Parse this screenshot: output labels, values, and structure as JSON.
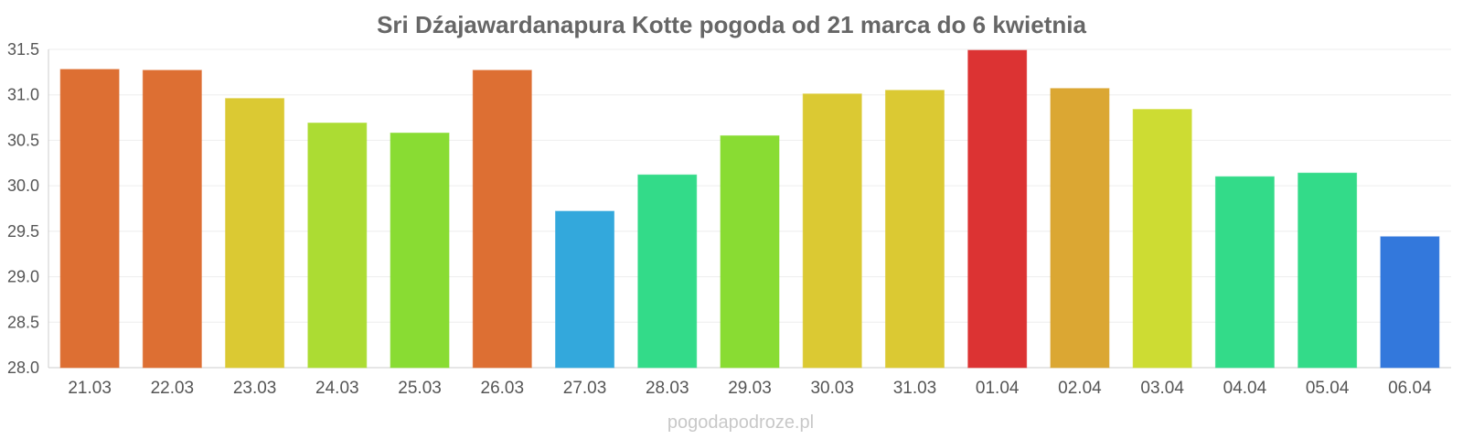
{
  "chart_data": {
    "type": "bar",
    "title": "Sri Dźajawardanapura Kotte pogoda od 21 marca do 6 kwietnia",
    "xlabel": "",
    "ylabel": "",
    "categories": [
      "21.03",
      "22.03",
      "23.03",
      "24.03",
      "25.03",
      "26.03",
      "27.03",
      "28.03",
      "29.03",
      "30.03",
      "31.03",
      "01.04",
      "02.04",
      "03.04",
      "04.04",
      "05.04",
      "06.04"
    ],
    "values": [
      31.28,
      31.27,
      30.96,
      30.69,
      30.58,
      31.27,
      29.72,
      30.12,
      30.55,
      31.01,
      31.05,
      31.49,
      31.07,
      30.84,
      30.1,
      30.14,
      29.44
    ],
    "colors": [
      "#dd6f33",
      "#dd6f33",
      "#dbc933",
      "#acdc33",
      "#89dc33",
      "#dd6f33",
      "#33a8dc",
      "#33db89",
      "#89dc33",
      "#dbc933",
      "#dbc933",
      "#dc3333",
      "#dba733",
      "#cddc33",
      "#33db89",
      "#33db89",
      "#3378dc"
    ],
    "ylim": [
      28.0,
      31.5
    ],
    "yticks": [
      "28.0",
      "28.5",
      "29.0",
      "29.5",
      "30.0",
      "30.5",
      "31.0",
      "31.5"
    ],
    "grid": true,
    "legend": "none"
  },
  "watermark": "pogodapodroze.pl"
}
